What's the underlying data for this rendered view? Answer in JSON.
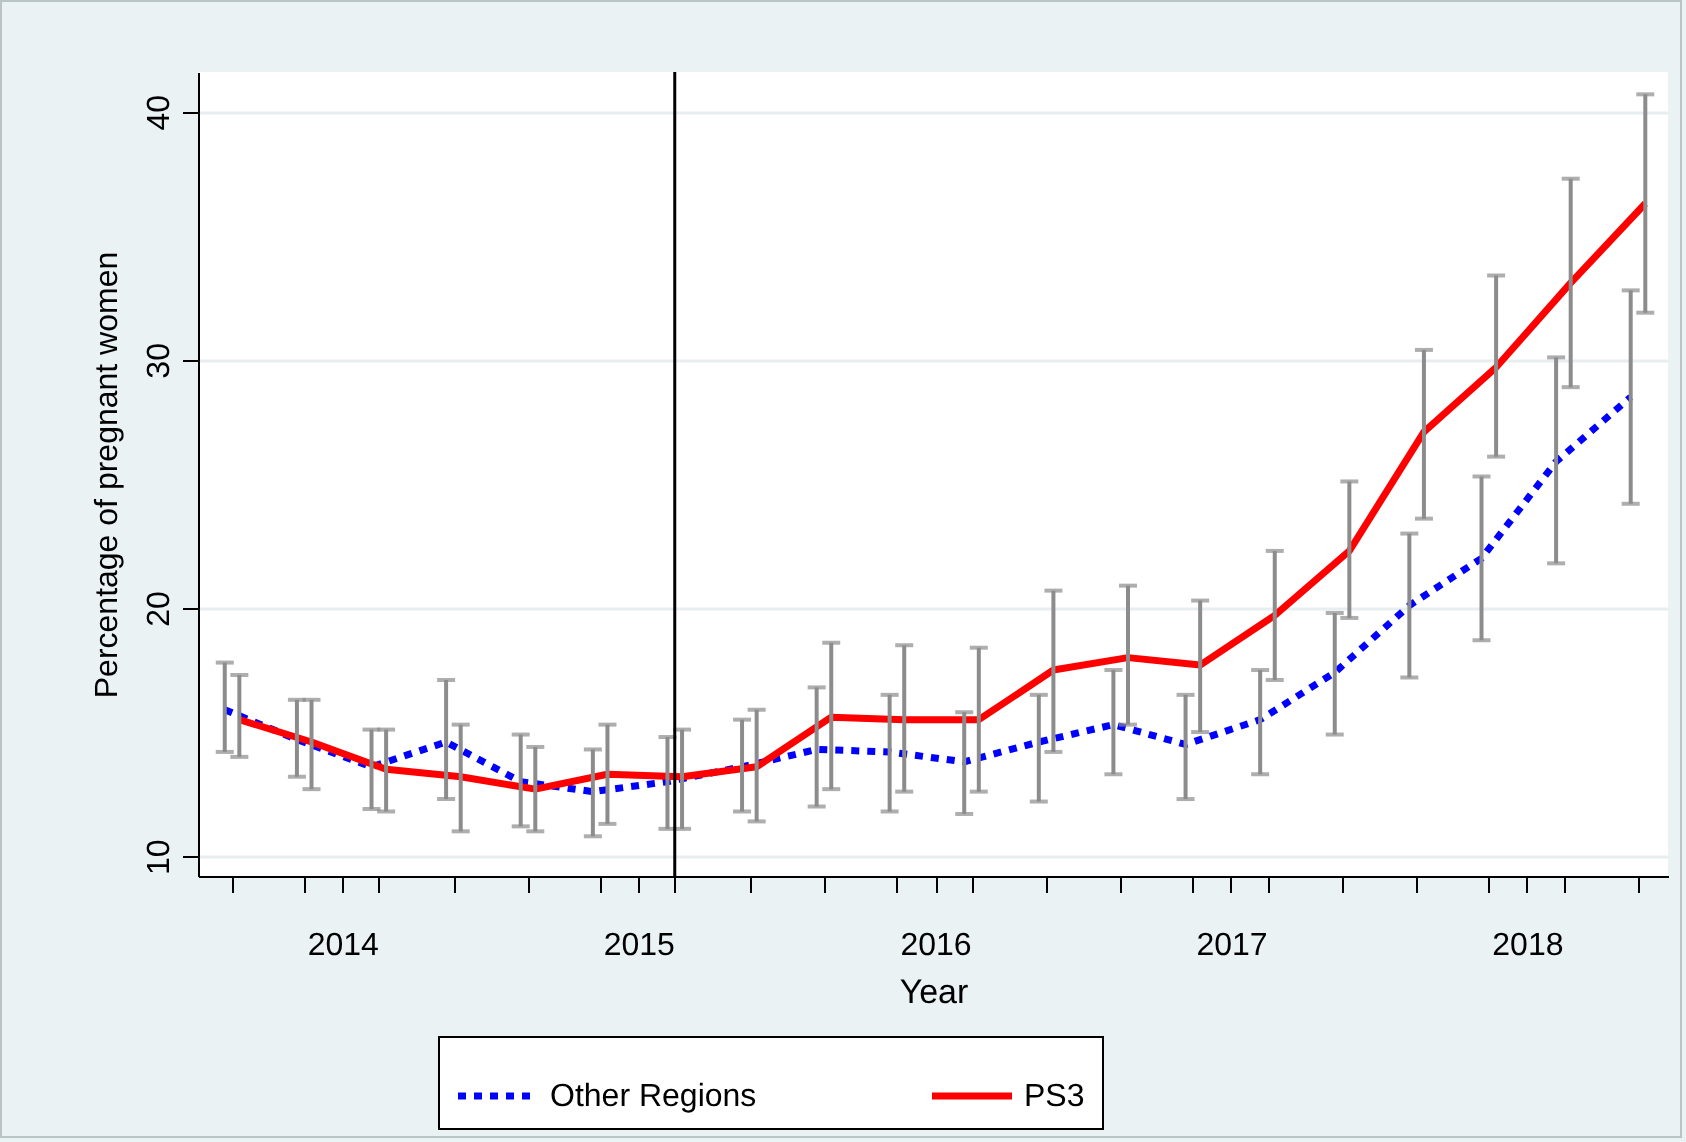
{
  "chart_data": {
    "type": "line",
    "xlabel": "Year",
    "ylabel": "Percentage of pregnant women",
    "xlim": [
      "2014-01-04",
      "2018-12-22"
    ],
    "xticks": [
      {
        "value": "2014-02-15",
        "label": null
      },
      {
        "value": "2014-05-15",
        "label": null
      },
      {
        "value": "2014-07-01",
        "label": "2014"
      },
      {
        "value": "2014-08-15",
        "label": null
      },
      {
        "value": "2014-11-15",
        "label": null
      },
      {
        "value": "2015-02-15",
        "label": null
      },
      {
        "value": "2015-05-15",
        "label": null
      },
      {
        "value": "2015-07-01",
        "label": "2015"
      },
      {
        "value": "2015-08-15",
        "label": null
      },
      {
        "value": "2015-11-15",
        "label": null
      },
      {
        "value": "2016-02-15",
        "label": null
      },
      {
        "value": "2016-05-15",
        "label": null
      },
      {
        "value": "2016-07-01",
        "label": "2016"
      },
      {
        "value": "2016-08-15",
        "label": null
      },
      {
        "value": "2016-11-15",
        "label": null
      },
      {
        "value": "2017-02-15",
        "label": null
      },
      {
        "value": "2017-05-15",
        "label": null
      },
      {
        "value": "2017-07-01",
        "label": "2017"
      },
      {
        "value": "2017-08-15",
        "label": null
      },
      {
        "value": "2017-11-15",
        "label": null
      },
      {
        "value": "2018-02-15",
        "label": null
      },
      {
        "value": "2018-05-15",
        "label": null
      },
      {
        "value": "2018-07-01",
        "label": "2018"
      },
      {
        "value": "2018-08-15",
        "label": null
      },
      {
        "value": "2018-11-15",
        "label": null
      }
    ],
    "ylim": [
      9.2,
      41.6
    ],
    "yticks": [
      10,
      20,
      30,
      40
    ],
    "grid": "y",
    "legend": "bottom",
    "marker": "none",
    "ref_lines": [
      {
        "axis": "x",
        "value": "2015-08-15",
        "color": "#000000"
      }
    ],
    "series": [
      {
        "name": "Other Regions",
        "color": "#0000ff",
        "line_style": "dotted",
        "x": [
          "2014-02-06",
          "2014-05-06",
          "2014-08-06",
          "2014-11-06",
          "2015-02-06",
          "2015-05-06",
          "2015-08-06",
          "2015-11-06",
          "2016-02-06",
          "2016-05-06",
          "2016-08-06",
          "2016-11-06",
          "2017-02-06",
          "2017-05-06",
          "2017-08-06",
          "2017-11-06",
          "2018-02-06",
          "2018-05-06",
          "2018-08-06",
          "2018-11-06"
        ],
        "values": [
          15.9,
          14.7,
          13.6,
          14.6,
          13.0,
          12.6,
          13.0,
          13.6,
          14.3,
          14.2,
          13.8,
          14.6,
          15.3,
          14.5,
          15.5,
          17.4,
          20.1,
          22.0,
          25.9,
          28.5
        ],
        "errors": [
          [
            14.2,
            17.8
          ],
          [
            13.2,
            16.3
          ],
          [
            11.9,
            15.1
          ],
          [
            12.3,
            17.1
          ],
          [
            11.2,
            14.9
          ],
          [
            10.8,
            14.3
          ],
          [
            11.1,
            14.8
          ],
          [
            11.8,
            15.5
          ],
          [
            12.0,
            16.8
          ],
          [
            11.8,
            16.5
          ],
          [
            11.7,
            15.8
          ],
          [
            12.2,
            16.5
          ],
          [
            13.3,
            17.5
          ],
          [
            12.3,
            16.5
          ],
          [
            13.3,
            17.5
          ],
          [
            14.9,
            19.8
          ],
          [
            17.2,
            23.0
          ],
          [
            18.7,
            25.3
          ],
          [
            21.8,
            30.1
          ],
          [
            24.2,
            32.8
          ]
        ]
      },
      {
        "name": "PS3",
        "color": "#ff0000",
        "line_style": "solid",
        "x": [
          "2014-02-24",
          "2014-05-24",
          "2014-08-24",
          "2014-11-24",
          "2015-02-24",
          "2015-05-24",
          "2015-08-24",
          "2015-11-24",
          "2016-02-24",
          "2016-05-24",
          "2016-08-24",
          "2016-11-24",
          "2017-02-24",
          "2017-05-24",
          "2017-08-24",
          "2017-11-24",
          "2018-02-24",
          "2018-05-24",
          "2018-08-24",
          "2018-11-24"
        ],
        "values": [
          15.5,
          14.6,
          13.5,
          13.2,
          12.7,
          13.3,
          13.2,
          13.6,
          15.6,
          15.5,
          15.5,
          17.5,
          18.0,
          17.7,
          19.7,
          22.3,
          27.1,
          29.7,
          33.1,
          36.3
        ],
        "errors": [
          [
            14.0,
            17.3
          ],
          [
            12.7,
            16.3
          ],
          [
            11.8,
            15.1
          ],
          [
            11.0,
            15.3
          ],
          [
            11.0,
            14.4
          ],
          [
            11.3,
            15.3
          ],
          [
            11.1,
            15.1
          ],
          [
            11.4,
            15.9
          ],
          [
            12.7,
            18.6
          ],
          [
            12.6,
            18.5
          ],
          [
            12.6,
            18.4
          ],
          [
            14.2,
            20.7
          ],
          [
            15.3,
            20.9
          ],
          [
            15.0,
            20.3
          ],
          [
            17.1,
            22.3
          ],
          [
            19.6,
            25.1
          ],
          [
            23.6,
            30.4
          ],
          [
            26.1,
            33.4
          ],
          [
            28.9,
            37.3
          ],
          [
            31.9,
            40.7
          ]
        ]
      }
    ]
  }
}
